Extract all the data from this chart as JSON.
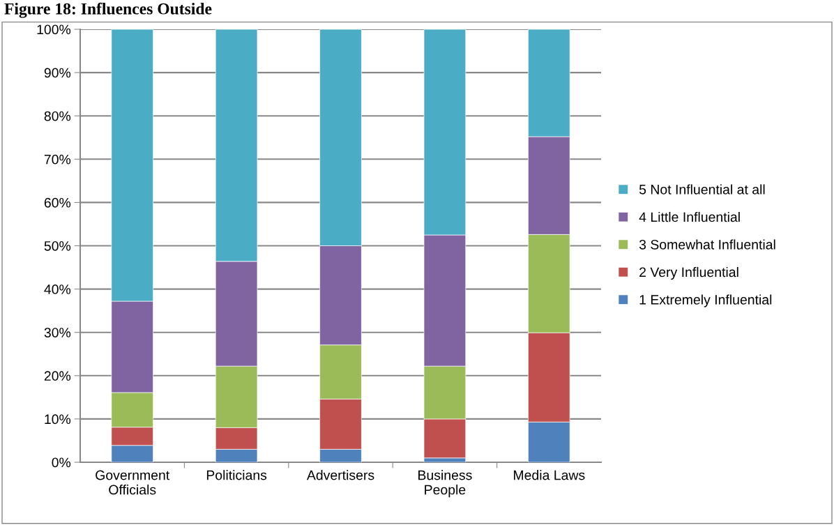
{
  "chart_data": {
    "type": "bar",
    "stacked": true,
    "title": "Figure 18: Influences Outside",
    "categories": [
      "Government\nOfficials",
      "Politicians",
      "Advertisers",
      "Business\nPeople",
      "Media Laws"
    ],
    "series": [
      {
        "name": "1 Extremely Influential",
        "color": "#4f81bd",
        "values": [
          3.9,
          3.0,
          3.0,
          1.0,
          9.3
        ]
      },
      {
        "name": "2 Very Influential",
        "color": "#c0504d",
        "values": [
          4.2,
          5.0,
          11.6,
          9.0,
          20.6
        ]
      },
      {
        "name": "3 Somewhat Influential",
        "color": "#9bbb59",
        "values": [
          8.0,
          14.2,
          12.5,
          12.2,
          22.7
        ]
      },
      {
        "name": "4 Little Influential",
        "color": "#8064a2",
        "values": [
          21.1,
          24.2,
          22.9,
          30.3,
          22.6
        ]
      },
      {
        "name": "5 Not Influential at all",
        "color": "#4bacc6",
        "values": [
          62.8,
          53.6,
          50.0,
          47.5,
          24.8
        ]
      }
    ],
    "ylim": [
      0,
      100
    ],
    "yticks": [
      {
        "value": 0,
        "label": "0%"
      },
      {
        "value": 10,
        "label": "10%"
      },
      {
        "value": 20,
        "label": "20%"
      },
      {
        "value": 30,
        "label": "30%"
      },
      {
        "value": 40,
        "label": "40%"
      },
      {
        "value": 50,
        "label": "50%"
      },
      {
        "value": 60,
        "label": "60%"
      },
      {
        "value": 70,
        "label": "70%"
      },
      {
        "value": 80,
        "label": "80%"
      },
      {
        "value": 90,
        "label": "90%"
      },
      {
        "value": 100,
        "label": "100%"
      }
    ],
    "grid": "y",
    "legend": "right"
  }
}
